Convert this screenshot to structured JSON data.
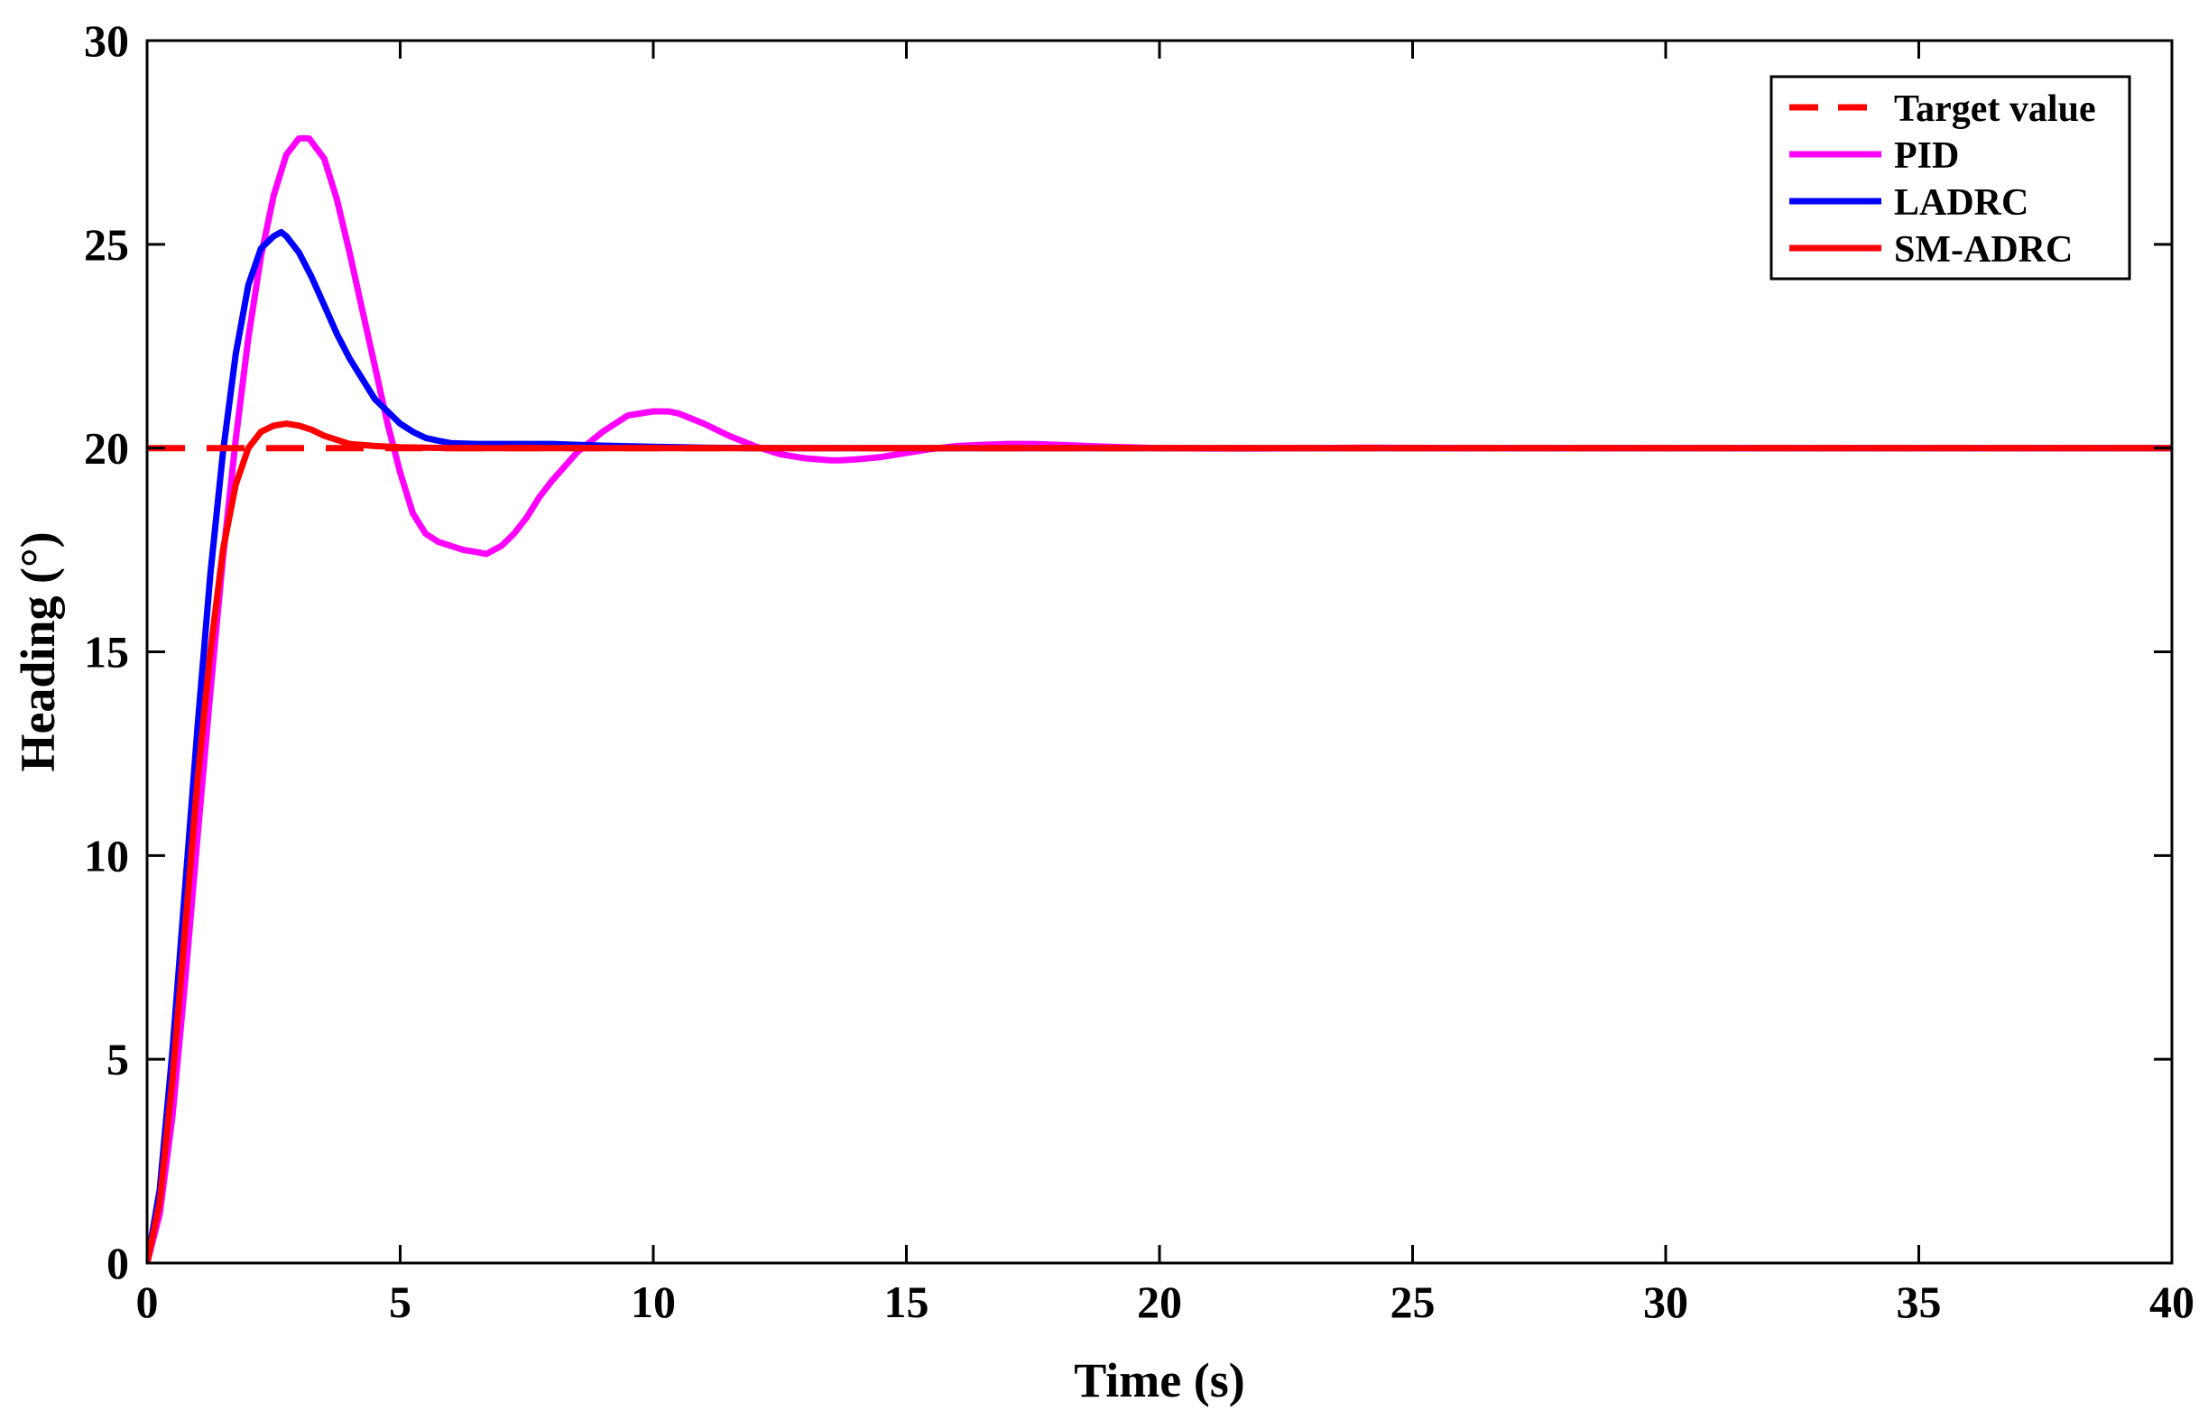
{
  "chart_data": {
    "type": "line",
    "title": "",
    "xlabel": "Time (s)",
    "ylabel": "Heading (°)",
    "xlim": [
      0,
      40
    ],
    "ylim": [
      0,
      30
    ],
    "xticks": [
      0,
      5,
      10,
      15,
      20,
      25,
      30,
      35,
      40
    ],
    "yticks": [
      0,
      5,
      10,
      15,
      20,
      25,
      30
    ],
    "xtick_labels": [
      "0",
      "5",
      "10",
      "15",
      "20",
      "25",
      "30",
      "35",
      "40"
    ],
    "ytick_labels": [
      "0",
      "5",
      "10",
      "15",
      "20",
      "25",
      "30"
    ],
    "grid": false,
    "legend_position": "top-right",
    "series": [
      {
        "name": "Target value",
        "color": "#ff0000",
        "style": "dashed",
        "x": [
          0,
          40
        ],
        "y": [
          20,
          20
        ]
      },
      {
        "name": "PID",
        "color": "#ff00ff",
        "style": "solid",
        "x": [
          0,
          0.25,
          0.5,
          0.75,
          1.0,
          1.25,
          1.5,
          1.75,
          2.0,
          2.25,
          2.5,
          2.75,
          3.0,
          3.2,
          3.5,
          3.75,
          4.0,
          4.25,
          4.5,
          4.75,
          5.0,
          5.25,
          5.5,
          5.75,
          6.0,
          6.25,
          6.5,
          6.7,
          7.0,
          7.25,
          7.5,
          7.75,
          8.0,
          8.5,
          9.0,
          9.5,
          10.0,
          10.3,
          10.5,
          11.0,
          11.5,
          12.0,
          12.5,
          13.0,
          13.5,
          13.7,
          14.0,
          14.5,
          15.0,
          15.5,
          16.0,
          16.5,
          17.0,
          17.5,
          18.0,
          19.0,
          20.0,
          21.0,
          22.0,
          23.0,
          24.0,
          26.0,
          28.0,
          30.0,
          35.0,
          40.0
        ],
        "y": [
          0,
          1.2,
          3.6,
          6.9,
          10.5,
          14.0,
          17.3,
          20.2,
          22.7,
          24.7,
          26.2,
          27.2,
          27.6,
          27.6,
          27.1,
          26.1,
          24.8,
          23.4,
          22.0,
          20.6,
          19.4,
          18.4,
          17.9,
          17.7,
          17.6,
          17.5,
          17.45,
          17.4,
          17.6,
          17.9,
          18.3,
          18.8,
          19.2,
          19.9,
          20.4,
          20.8,
          20.9,
          20.9,
          20.85,
          20.6,
          20.3,
          20.05,
          19.85,
          19.75,
          19.7,
          19.7,
          19.72,
          19.78,
          19.88,
          19.98,
          20.05,
          20.08,
          20.1,
          20.1,
          20.08,
          20.03,
          20.0,
          19.99,
          19.99,
          20.0,
          20.01,
          20.0,
          20.0,
          20.0,
          20.0,
          20.0
        ]
      },
      {
        "name": "LADRC",
        "color": "#0000ff",
        "style": "solid",
        "x": [
          0,
          0.25,
          0.5,
          0.75,
          1.0,
          1.25,
          1.5,
          1.75,
          2.0,
          2.25,
          2.5,
          2.65,
          2.75,
          3.0,
          3.25,
          3.5,
          3.75,
          4.0,
          4.25,
          4.5,
          4.75,
          5.0,
          5.25,
          5.5,
          5.75,
          6.0,
          6.5,
          7.0,
          7.5,
          8.0,
          8.5,
          9.0,
          10.0,
          11.0,
          12.0,
          14.0,
          16.0,
          20.0,
          30.0,
          40.0
        ],
        "y": [
          0,
          1.8,
          5.2,
          9.2,
          13.2,
          16.9,
          19.9,
          22.3,
          24.0,
          24.9,
          25.2,
          25.3,
          25.2,
          24.8,
          24.2,
          23.5,
          22.8,
          22.2,
          21.7,
          21.2,
          20.9,
          20.6,
          20.4,
          20.25,
          20.18,
          20.12,
          20.1,
          20.1,
          20.1,
          20.1,
          20.08,
          20.06,
          20.03,
          20.01,
          20.0,
          20.0,
          20.0,
          20.0,
          20.0,
          20.0
        ]
      },
      {
        "name": "SM-ADRC",
        "color": "#ff0000",
        "style": "solid",
        "x": [
          0,
          0.25,
          0.5,
          0.75,
          1.0,
          1.25,
          1.5,
          1.75,
          2.0,
          2.25,
          2.5,
          2.75,
          3.0,
          3.25,
          3.5,
          3.75,
          4.0,
          4.5,
          5.0,
          6.0,
          7.0,
          8.0,
          10.0,
          15.0,
          20.0,
          30.0,
          40.0
        ],
        "y": [
          0,
          1.5,
          4.5,
          8.2,
          11.9,
          15.0,
          17.5,
          19.1,
          20.0,
          20.4,
          20.55,
          20.6,
          20.55,
          20.45,
          20.3,
          20.2,
          20.1,
          20.05,
          20.02,
          20.0,
          20.0,
          20.0,
          20.0,
          20.0,
          20.0,
          20.0,
          20.0
        ]
      }
    ]
  }
}
